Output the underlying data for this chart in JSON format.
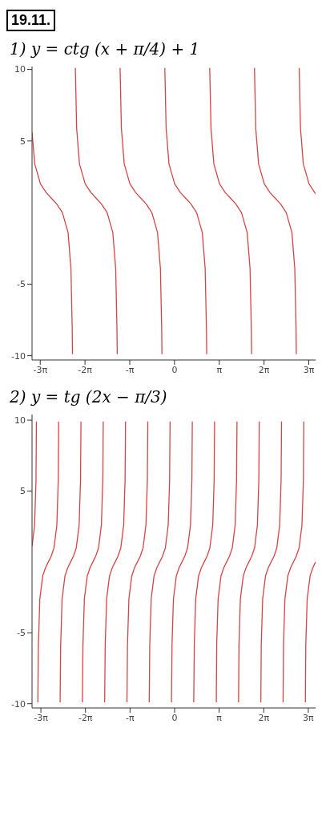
{
  "chart_data": [
    {
      "type": "line",
      "title": "1) y = ctg (x + π/4) + 1",
      "annotations": [
        "19.11."
      ],
      "xlim": [
        -10.0,
        9.9
      ],
      "ylim": [
        -10.3,
        10.2
      ],
      "xticks": [
        {
          "value": -9.4248,
          "label": "-3π"
        },
        {
          "value": -6.2832,
          "label": "-2π"
        },
        {
          "value": -3.1416,
          "label": "-π"
        },
        0,
        {
          "value": 3.1416,
          "label": "π"
        },
        {
          "value": 6.2832,
          "label": "2π"
        },
        {
          "value": 9.4248,
          "label": "3π"
        }
      ],
      "yticks": [
        -10,
        -5,
        5,
        10
      ],
      "series": [
        {
          "color": "#d64545",
          "x": [
            -10.0,
            -9.81,
            -9.41,
            -9.01,
            -8.64,
            -8.27,
            -7.87,
            -7.47,
            -7.27,
            -7.18,
            -7.16,
            -7.07,
            -6.96,
            -6.87,
            -6.67,
            -6.27,
            -5.87,
            -5.5,
            -5.13,
            -4.73,
            -4.33,
            -4.13,
            -4.04,
            -4.02,
            -3.93,
            -3.82,
            -3.73,
            -3.53,
            -3.13,
            -2.73,
            -2.36,
            -1.99,
            -1.59,
            -1.19,
            -0.99,
            -0.9,
            -0.88,
            -0.79,
            -0.68,
            -0.59,
            -0.39,
            0.01,
            0.41,
            0.78,
            1.15,
            1.55,
            1.95,
            2.15,
            2.24,
            2.26,
            2.36,
            2.47,
            2.56,
            2.76,
            3.16,
            3.56,
            3.93,
            4.3,
            4.7,
            5.1,
            5.3,
            5.39,
            5.41,
            5.5,
            5.61,
            5.7,
            5.9,
            6.3,
            6.7,
            7.07,
            7.44,
            7.84,
            8.24,
            8.44,
            8.53,
            8.55,
            8.64,
            8.75,
            8.84,
            9.04,
            9.44,
            9.84,
            9.9
          ],
          "values": [
            5.6,
            3.4,
            2.0,
            1.4,
            1.0,
            0.6,
            0.0,
            -1.4,
            -3.9,
            -8.1,
            -9.9,
            null,
            10.1,
            5.9,
            3.4,
            2.0,
            1.4,
            1.0,
            0.6,
            0.0,
            -1.4,
            -3.9,
            -8.1,
            -9.9,
            null,
            10.1,
            5.9,
            3.4,
            2.0,
            1.4,
            1.0,
            0.6,
            0.0,
            -1.4,
            -3.9,
            -8.1,
            -9.9,
            null,
            10.1,
            5.9,
            3.4,
            2.0,
            1.4,
            1.0,
            0.6,
            0.0,
            -1.4,
            -3.9,
            -8.1,
            -9.9,
            null,
            10.1,
            5.9,
            3.4,
            2.0,
            1.4,
            1.0,
            0.6,
            0.0,
            -1.4,
            -3.9,
            -8.1,
            -9.9,
            null,
            10.1,
            5.9,
            3.4,
            2.0,
            1.4,
            1.0,
            0.6,
            0.0,
            -1.4,
            -3.9,
            -8.1,
            -9.9,
            null,
            10.1,
            5.9,
            3.4,
            2.0,
            1.4,
            1.3
          ]
        }
      ]
    },
    {
      "type": "line",
      "title": "2) y = tg (2x − π/3)",
      "xlim": [
        -10.05,
        9.94
      ],
      "ylim": [
        -10.3,
        10.4
      ],
      "xticks": [
        {
          "value": -9.4248,
          "label": "-3π"
        },
        {
          "value": -6.2832,
          "label": "-2π"
        },
        {
          "value": -3.1416,
          "label": "-π"
        },
        0,
        {
          "value": 3.1416,
          "label": "π"
        },
        {
          "value": 6.2832,
          "label": "2π"
        },
        {
          "value": 9.4248,
          "label": "3π"
        }
      ],
      "yticks": [
        -10,
        -5,
        5,
        10
      ],
      "series": [
        {
          "color": "#d64545",
          "x": [
            -10.05,
            -9.87,
            -9.77,
            -9.74,
            -9.69,
            -9.64,
            -9.6,
            -9.5,
            -9.3,
            -9.1,
            -8.9,
            -8.7,
            -8.5,
            -8.3,
            -8.2,
            -8.17,
            -8.12,
            -8.07,
            -8.03,
            -7.93,
            -7.73,
            -7.53,
            -7.33,
            -7.13,
            -6.93,
            -6.73,
            -6.63,
            -6.6,
            -6.55,
            -6.5,
            -6.46,
            -6.36,
            -6.16,
            -5.96,
            -5.76,
            -5.56,
            -5.36,
            -5.16,
            -5.06,
            -5.03,
            -4.97,
            -4.93,
            -4.89,
            -4.79,
            -4.59,
            -4.39,
            -4.19,
            -3.99,
            -3.79,
            -3.59,
            -3.49,
            -3.46,
            -3.4,
            -3.36,
            -3.32,
            -3.22,
            -3.02,
            -2.82,
            -2.62,
            -2.42,
            -2.22,
            -2.02,
            -1.92,
            -1.89,
            -1.83,
            -1.79,
            -1.75,
            -1.65,
            -1.45,
            -1.25,
            -1.05,
            -0.85,
            -0.65,
            -0.45,
            -0.35,
            -0.32,
            -0.26,
            -0.22,
            -0.18,
            -0.08,
            0.12,
            0.32,
            0.52,
            0.72,
            0.92,
            1.12,
            1.22,
            1.25,
            1.31,
            1.35,
            1.39,
            1.49,
            1.69,
            1.89,
            2.09,
            2.29,
            2.49,
            2.69,
            2.79,
            2.82,
            2.88,
            2.94,
            2.97,
            3.07,
            3.27,
            3.47,
            3.67,
            3.87,
            4.07,
            4.27,
            4.37,
            4.4,
            4.45,
            4.51,
            4.54,
            4.64,
            4.84,
            5.04,
            5.24,
            5.44,
            5.64,
            5.84,
            5.94,
            5.97,
            6.02,
            6.08,
            6.11,
            6.21,
            6.41,
            6.61,
            6.81,
            7.01,
            7.21,
            7.41,
            7.51,
            7.54,
            7.59,
            7.65,
            7.68,
            7.78,
            7.98,
            8.18,
            8.38,
            8.58,
            8.78,
            8.98,
            9.08,
            9.11,
            9.16,
            9.22,
            9.25,
            9.35,
            9.55,
            9.75,
            9.94
          ],
          "values": [
            1.1,
            2.6,
            5.8,
            9.9,
            null,
            -9.9,
            -5.8,
            -2.6,
            -1.0,
            -0.4,
            0.0,
            0.4,
            1.0,
            2.6,
            5.8,
            9.9,
            null,
            -9.9,
            -5.8,
            -2.6,
            -1.0,
            -0.4,
            0.0,
            0.4,
            1.0,
            2.6,
            5.8,
            9.9,
            null,
            -9.9,
            -5.8,
            -2.6,
            -1.0,
            -0.4,
            0.0,
            0.4,
            1.0,
            2.6,
            5.8,
            9.9,
            null,
            -9.9,
            -5.8,
            -2.6,
            -1.0,
            -0.4,
            0.0,
            0.4,
            1.0,
            2.6,
            5.8,
            9.9,
            null,
            -9.9,
            -5.8,
            -2.6,
            -1.0,
            -0.4,
            0.0,
            0.4,
            1.0,
            2.6,
            5.8,
            9.9,
            null,
            -9.9,
            -5.8,
            -2.6,
            -1.0,
            -0.4,
            0.0,
            0.4,
            1.0,
            2.6,
            5.8,
            9.9,
            null,
            -9.9,
            -5.8,
            -2.6,
            -1.0,
            -0.4,
            0.0,
            0.4,
            1.0,
            2.6,
            5.8,
            9.9,
            null,
            -9.9,
            -5.8,
            -2.6,
            -1.0,
            -0.4,
            0.0,
            0.4,
            1.0,
            2.6,
            5.8,
            9.9,
            null,
            -9.9,
            -5.8,
            -2.6,
            -1.0,
            -0.4,
            0.0,
            0.4,
            1.0,
            2.6,
            5.8,
            9.9,
            null,
            -9.9,
            -5.8,
            -2.6,
            -1.0,
            -0.4,
            0.0,
            0.4,
            1.0,
            2.6,
            5.8,
            9.9,
            null,
            -9.9,
            -5.8,
            -2.6,
            -1.0,
            -0.4,
            0.0,
            0.4,
            1.0,
            2.6,
            5.8,
            9.9,
            null,
            -9.9,
            -5.8,
            -2.6,
            -1.0,
            -0.4,
            0.0,
            0.4,
            1.0,
            2.6,
            5.8,
            9.9,
            null,
            -9.9,
            -5.8,
            -2.6,
            -1.0,
            -0.4,
            0.0
          ]
        }
      ]
    }
  ]
}
